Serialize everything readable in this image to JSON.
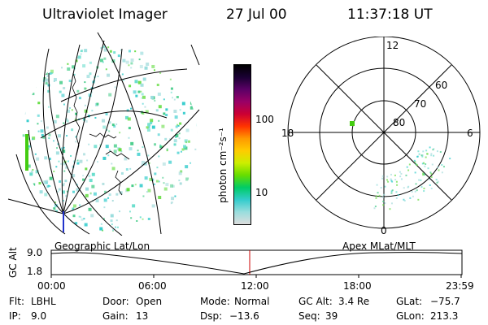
{
  "header": {
    "instrument": "Ultraviolet Imager",
    "date": "27 Jul 00",
    "time": "11:37:18 UT"
  },
  "colorbar": {
    "unit_label": "photon cm⁻²s⁻¹",
    "ticks": [
      "100",
      "10"
    ],
    "colors": [
      "#000000",
      "#1a0033",
      "#5b0066",
      "#990066",
      "#cc0033",
      "#ff3300",
      "#ff9900",
      "#ffcc00",
      "#ccee00",
      "#66dd00",
      "#00cc66",
      "#33cccc",
      "#99dddd",
      "#dddddd"
    ]
  },
  "polar_plot": {
    "mlt_labels": {
      "top": "12",
      "left": "18",
      "right": "6",
      "bottom": "0"
    },
    "lat_labels": [
      "60",
      "70",
      "80"
    ]
  },
  "timeline": {
    "ylabel": "GC Alt",
    "y_ticks": [
      "9.0",
      "1.8"
    ],
    "left_label": "Geographic Lat/Lon",
    "right_label": "Apex MLat/MLT",
    "x_ticks": [
      "00:00",
      "06:00",
      "12:00",
      "18:00",
      "23:59"
    ]
  },
  "info": {
    "flt_label": "Flt:",
    "flt_value": "LBHL",
    "ip_label": "IP:",
    "ip_value": "9.0",
    "door_label": "Door:",
    "door_value": "Open",
    "gain_label": "Gain:",
    "gain_value": "13",
    "mode_label": "Mode:",
    "mode_value": "Normal",
    "dsp_label": "Dsp:",
    "dsp_value": "−13.6",
    "gcalt_label": "GC Alt:",
    "gcalt_value": "3.4 Re",
    "seq_label": "Seq:",
    "seq_value": "39",
    "glat_label": "GLat:",
    "glat_value": "−75.7",
    "glon_label": "GLon:",
    "glon_value": "213.3"
  }
}
